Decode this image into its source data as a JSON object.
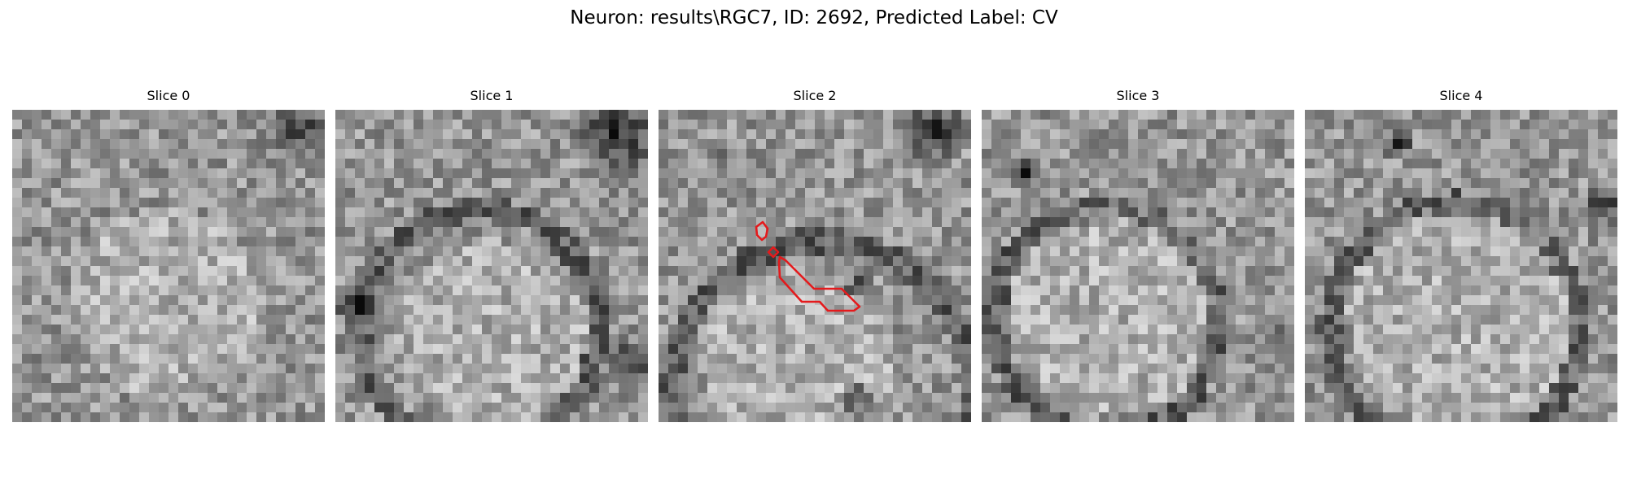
{
  "figure": {
    "title": "Neuron: results\\RGC7, ID: 2692, Predicted Label: CV"
  },
  "panels": [
    {
      "title": "Slice 0",
      "seed": 11,
      "blob": [
        0.5,
        0.62,
        0.3
      ],
      "highlight": false
    },
    {
      "title": "Slice 1",
      "seed": 23,
      "blob": [
        0.5,
        0.72,
        0.3
      ],
      "highlight": false
    },
    {
      "title": "Slice 2",
      "seed": 37,
      "blob": [
        0.45,
        0.8,
        0.3
      ],
      "highlight": true
    },
    {
      "title": "Slice 3",
      "seed": 41,
      "blob": [
        0.42,
        0.64,
        0.34
      ],
      "highlight": false
    },
    {
      "title": "Slice 4",
      "seed": 53,
      "blob": [
        0.5,
        0.66,
        0.36
      ],
      "highlight": false
    }
  ],
  "colors": {
    "contour": "#e41a1c",
    "background": "#ffffff"
  }
}
